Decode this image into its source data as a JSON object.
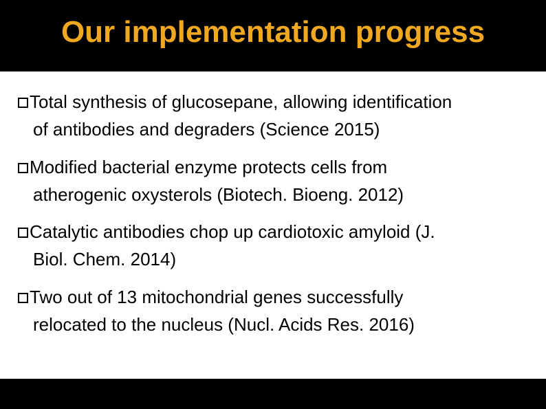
{
  "slide": {
    "title": "Our implementation progress",
    "title_color": "#f0a820",
    "title_fontsize": 44,
    "background_color": "#000000",
    "content_background": "#ffffff",
    "body_fontsize": 26,
    "body_color": "#000000",
    "bullets": [
      {
        "line1": "Total synthesis of glucosepane, allowing identification",
        "line2": "of antibodies and degraders (Science 2015)"
      },
      {
        "line1": "Modified bacterial enzyme protects cells from",
        "line2": "atherogenic oxysterols (Biotech. Bioeng. 2012)"
      },
      {
        "line1": "Catalytic antibodies chop up cardiotoxic amyloid (J.",
        "line2": "Biol. Chem. 2014)"
      },
      {
        "line1": "Two out of 13 mitochondrial genes successfully",
        "line2": "relocated to the nucleus (Nucl. Acids Res. 2016)"
      }
    ]
  }
}
